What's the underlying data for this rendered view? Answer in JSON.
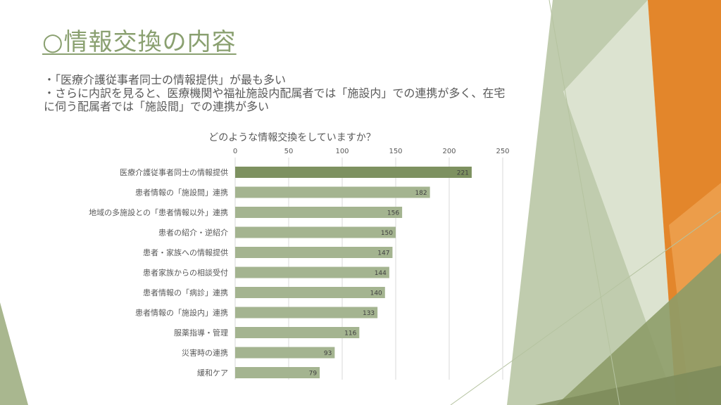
{
  "slide": {
    "title": "○情報交換の内容",
    "bullets": [
      "・「医療介護従事者同士の情報提供」が最も多い",
      "・さらに内訳を見ると、医療機関や福祉施設内配属者では「施設内」での連携が多く、在宅",
      "に伺う配属者では「施設間」での連携が多い"
    ]
  },
  "colors": {
    "bar_top": "#7d9160",
    "bar": "#a4b490",
    "title": "#8aa070",
    "orange": "#e3862b",
    "olive": "#8d9c68",
    "sage": "#b2c09a"
  },
  "chart_data": {
    "type": "bar",
    "orientation": "horizontal",
    "title": "どのような情報交換をしていますか？",
    "categories": [
      "医療介護従事者同士の情報提供",
      "患者情報の「施設間」連携",
      "地域の多施設との「患者情報以外」連携",
      "患者の紹介・逆紹介",
      "患者・家族への情報提供",
      "患者家族からの相談受付",
      "患者情報の「病診」連携",
      "患者情報の「施設内」連携",
      "服薬指導・管理",
      "災害時の連携",
      "緩和ケア"
    ],
    "values": [
      221,
      182,
      156,
      150,
      147,
      144,
      140,
      133,
      116,
      93,
      79
    ],
    "xlim": [
      0,
      250
    ],
    "ticks": [
      0,
      50,
      100,
      150,
      200,
      250
    ],
    "grid": true,
    "axis_position": "top",
    "data_labels": true
  }
}
